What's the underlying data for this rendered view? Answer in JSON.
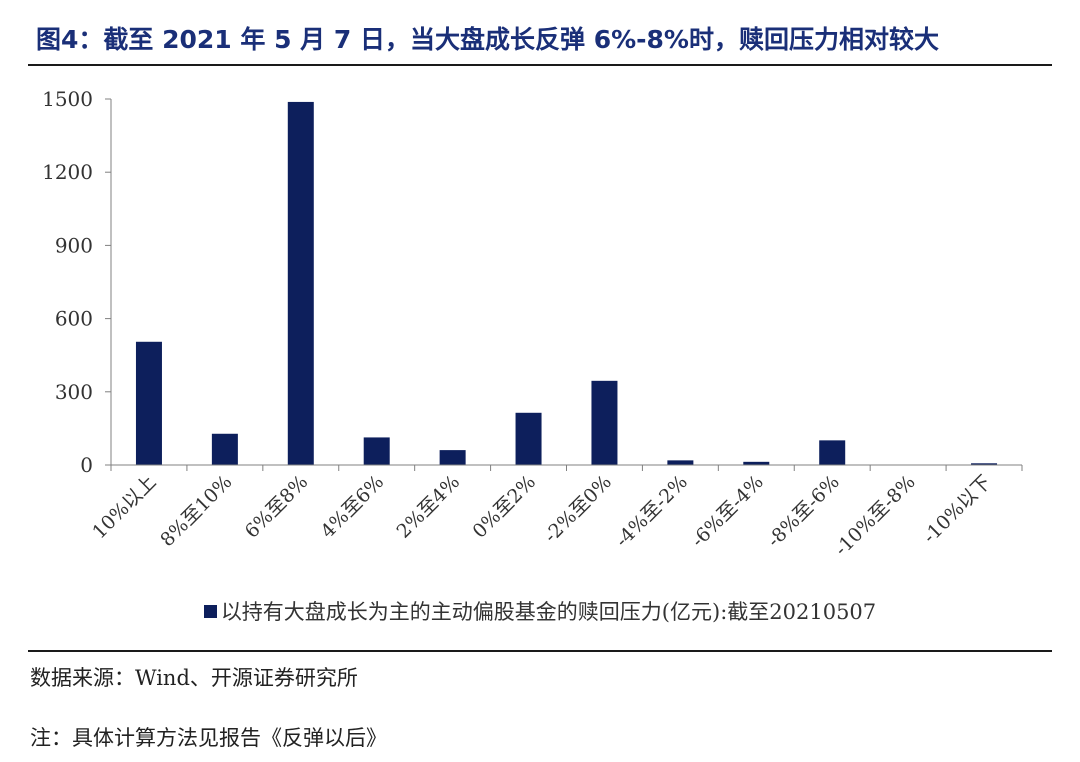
{
  "figure_title": "图4：截至 2021 年 5 月 7 日，当大盘成长反弹 6%-8%时，赎回压力相对较大",
  "source": "数据来源：Wind、开源证券研究所",
  "note": "注：具体计算方法见报告《反弹以后》",
  "colors": {
    "bar": "#0d1f5c",
    "title": "#1a2f78",
    "axis": "#808080"
  },
  "chart_data": {
    "type": "bar",
    "title": "",
    "xlabel": "",
    "ylabel": "",
    "categories": [
      "10%以上",
      "8%至10%",
      "6%至8%",
      "4%至6%",
      "2%至4%",
      "0%至2%",
      "-2%至0%",
      "-4%至-2%",
      "-6%至-4%",
      "-8%至-6%",
      "-10%至-8%",
      "-10%以下"
    ],
    "series": [
      {
        "name": "以持有大盘成长为主的主动偏股基金的赎回压力(亿元):截至20210507",
        "values": [
          505,
          128,
          1488,
          113,
          61,
          214,
          345,
          19,
          13,
          101,
          0,
          7
        ]
      }
    ],
    "ylim": [
      0,
      1500
    ],
    "yticks": [
      0,
      300,
      600,
      900,
      1200,
      1500
    ],
    "grid": false,
    "legend_position": "bottom"
  }
}
